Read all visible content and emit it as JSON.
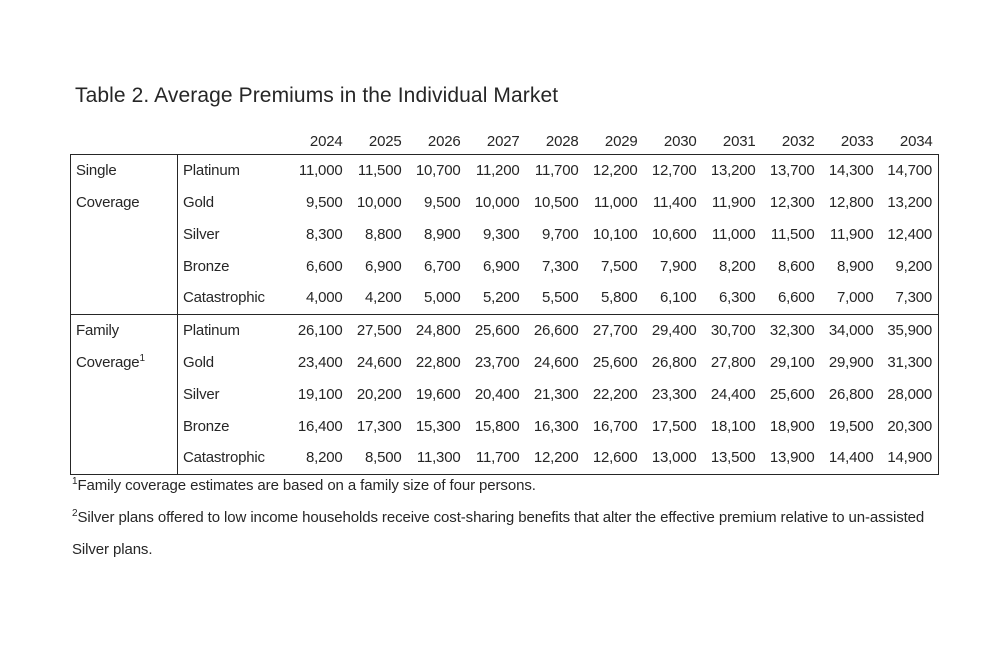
{
  "title": "Table 2. Average Premiums in the Individual Market",
  "colors": {
    "text": "#262626",
    "border": "#262626",
    "background": "#ffffff"
  },
  "table": {
    "years": [
      "2024",
      "2025",
      "2026",
      "2027",
      "2028",
      "2029",
      "2030",
      "2031",
      "2032",
      "2033",
      "2034"
    ],
    "sections": [
      {
        "label_lines": [
          "Single",
          "Coverage"
        ],
        "footnote_marker": "",
        "rows": [
          {
            "tier": "Platinum",
            "values": [
              "11,000",
              "11,500",
              "10,700",
              "11,200",
              "11,700",
              "12,200",
              "12,700",
              "13,200",
              "13,700",
              "14,300",
              "14,700"
            ]
          },
          {
            "tier": "Gold",
            "values": [
              "9,500",
              "10,000",
              "9,500",
              "10,000",
              "10,500",
              "11,000",
              "11,400",
              "11,900",
              "12,300",
              "12,800",
              "13,200"
            ]
          },
          {
            "tier": "Silver",
            "values": [
              "8,300",
              "8,800",
              "8,900",
              "9,300",
              "9,700",
              "10,100",
              "10,600",
              "11,000",
              "11,500",
              "11,900",
              "12,400"
            ]
          },
          {
            "tier": "Bronze",
            "values": [
              "6,600",
              "6,900",
              "6,700",
              "6,900",
              "7,300",
              "7,500",
              "7,900",
              "8,200",
              "8,600",
              "8,900",
              "9,200"
            ]
          },
          {
            "tier": "Catastrophic",
            "values": [
              "4,000",
              "4,200",
              "5,000",
              "5,200",
              "5,500",
              "5,800",
              "6,100",
              "6,300",
              "6,600",
              "7,000",
              "7,300"
            ]
          }
        ]
      },
      {
        "label_lines": [
          "Family",
          "Coverage"
        ],
        "footnote_marker": "1",
        "rows": [
          {
            "tier": "Platinum",
            "values": [
              "26,100",
              "27,500",
              "24,800",
              "25,600",
              "26,600",
              "27,700",
              "29,400",
              "30,700",
              "32,300",
              "34,000",
              "35,900"
            ]
          },
          {
            "tier": "Gold",
            "values": [
              "23,400",
              "24,600",
              "22,800",
              "23,700",
              "24,600",
              "25,600",
              "26,800",
              "27,800",
              "29,100",
              "29,900",
              "31,300"
            ]
          },
          {
            "tier": "Silver",
            "values": [
              "19,100",
              "20,200",
              "19,600",
              "20,400",
              "21,300",
              "22,200",
              "23,300",
              "24,400",
              "25,600",
              "26,800",
              "28,000"
            ]
          },
          {
            "tier": "Bronze",
            "values": [
              "16,400",
              "17,300",
              "15,300",
              "15,800",
              "16,300",
              "16,700",
              "17,500",
              "18,100",
              "18,900",
              "19,500",
              "20,300"
            ]
          },
          {
            "tier": "Catastrophic",
            "values": [
              "8,200",
              "8,500",
              "11,300",
              "11,700",
              "12,200",
              "12,600",
              "13,000",
              "13,500",
              "13,900",
              "14,400",
              "14,900"
            ]
          }
        ]
      }
    ]
  },
  "footnotes": [
    {
      "marker": "1",
      "text": "Family coverage estimates are based on a family size of four persons."
    },
    {
      "marker": "2",
      "text": "Silver plans offered to low income households receive cost-sharing benefits that alter the effective premium relative to un-assisted Silver plans."
    }
  ]
}
